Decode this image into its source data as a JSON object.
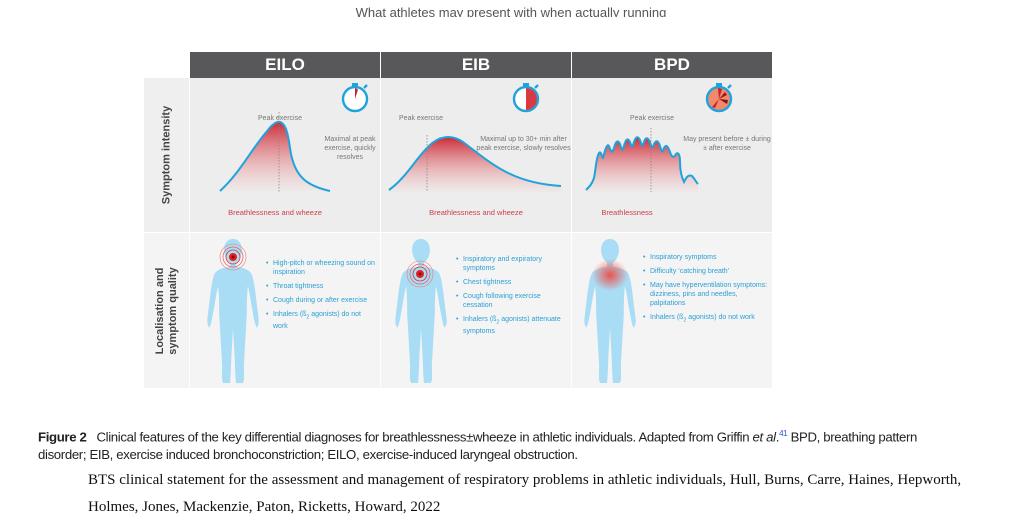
{
  "top_caption": "What athletes may present with when actually running",
  "figure": {
    "columns": [
      {
        "title": "EILO",
        "peak_label": "Peak exercise",
        "timing_note": "Maximal at peak exercise, quickly resolves",
        "curve_label": "Breathlessness and wheeze",
        "bullets": [
          "High-pitch or wheezing sound on inspiration",
          "Throat tightness",
          "Cough during or after exercise",
          "Inhalers (ß2 agonists) do not work"
        ]
      },
      {
        "title": "EIB",
        "peak_label": "Peak exercise",
        "timing_note": "Maximal up to 30+ min after peak exercise, slowly resolves",
        "curve_label": "Breathlessness and wheeze",
        "bullets": [
          "Inspiratory and expiratory symptoms",
          "Chest tightness",
          "Cough following exercise cessation",
          "Inhalers (ß2 agonists) attenuate symptoms"
        ]
      },
      {
        "title": "BPD",
        "peak_label": "Peak exercise",
        "timing_note": "May present before ± during ± after exercise",
        "curve_label": "Breathlessness",
        "bullets": [
          "Inspiratory symptoms",
          "Difficulty ‘catching breath’",
          "May have hyperventilation symptoms: dizziness, pins and needles, palpitations",
          "Inhalers (ß2 agonists) do not work"
        ]
      }
    ],
    "row_labels": [
      "Symptom intensity",
      "Localisation and symptom quality"
    ],
    "colors": {
      "header": "#58585a",
      "curve": "#1ea3dc",
      "red": "#c8202f",
      "body": "#a9dcf5"
    }
  },
  "caption": {
    "label": "Figure 2",
    "text_1": "Clinical features of the key differential diagnoses for breathlessness±wheeze in athletic individuals. Adapted from Griffin ",
    "etal": "et al",
    "dot": ".",
    "ref": "41",
    "text_2": " BPD, breathing pattern disorder; EIB, exercise induced bronchoconstriction; EILO, exercise-induced laryngeal obstruction."
  },
  "citation": "BTS clinical statement for the assessment and management of respiratory problems in athletic individuals, Hull, Burns, Carre, Haines, Hepworth, Holmes, Jones, Mackenzie, Paton, Ricketts, Howard, 2022"
}
